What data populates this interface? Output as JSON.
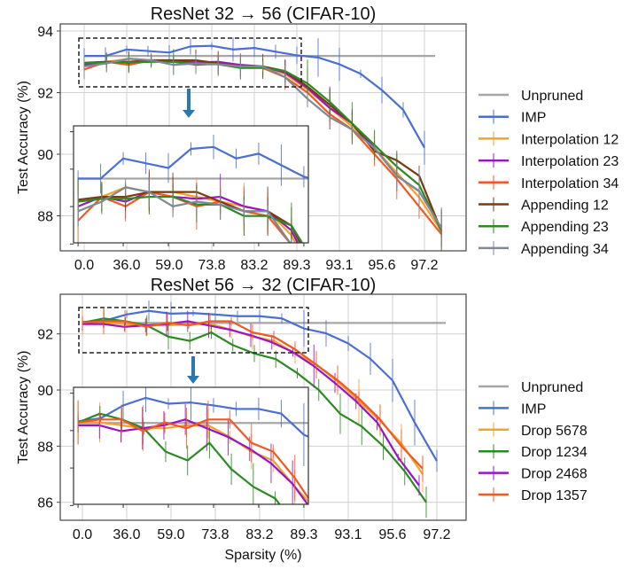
{
  "chart_data": [
    {
      "type": "line",
      "title": "ResNet 32 → 56 (CIFAR-10)",
      "xlabel": "",
      "ylabel": "Test Accuracy (%)",
      "xtick_labels": [
        "0.0",
        "36.0",
        "59.0",
        "73.8",
        "83.2",
        "89.3",
        "93.1",
        "95.6",
        "97.2"
      ],
      "yticks": [
        88,
        90,
        92,
        94
      ],
      "ylim": [
        87.1,
        94.2
      ],
      "grid": true,
      "legend_position": "right",
      "inset": {
        "xlim": [
          -0.2,
          10.2
        ],
        "ylim": [
          92.52,
          93.74
        ]
      },
      "series": [
        {
          "name": "Unpruned",
          "color": "#a6a6a6",
          "errorbars": false,
          "x": [
            0,
            16.5
          ],
          "values": [
            93.19,
            93.19
          ]
        },
        {
          "name": "IMP",
          "color": "#4a6fd0",
          "errorbars": true,
          "x": [
            0,
            1,
            2,
            3,
            4,
            5,
            6,
            7,
            8,
            9,
            10,
            11,
            12,
            13,
            14,
            15,
            16
          ],
          "values": [
            93.19,
            93.19,
            93.4,
            93.35,
            93.3,
            93.5,
            93.52,
            93.4,
            93.45,
            93.33,
            93.21,
            93.14,
            92.92,
            92.61,
            92.08,
            91.44,
            90.21
          ]
        },
        {
          "name": "Interpolation 12",
          "color": "#f5a22a",
          "errorbars": true,
          "x": [
            0,
            1.05,
            2.1,
            3.15,
            4.2,
            5.25,
            6.3,
            7.35,
            8.4,
            9.45,
            10.5,
            11.55,
            12.6,
            13.65,
            14.7,
            15.75,
            16.8
          ],
          "values": [
            92.95,
            93.0,
            93.1,
            93.05,
            93.05,
            93.0,
            92.95,
            92.9,
            92.85,
            92.6,
            92.1,
            91.5,
            90.9,
            90.2,
            89.4,
            88.6,
            87.5
          ]
        },
        {
          "name": "Interpolation 23",
          "color": "#9b14c4",
          "errorbars": true,
          "x": [
            0,
            1.05,
            2.1,
            3.15,
            4.2,
            5.25,
            6.3,
            7.35,
            8.4,
            9.45,
            10.5,
            11.55,
            12.6,
            13.65,
            14.7,
            15.75,
            16.8
          ],
          "values": [
            92.9,
            93.0,
            92.95,
            93.05,
            93.0,
            92.98,
            93.0,
            92.9,
            92.85,
            92.65,
            92.15,
            91.5,
            91.0,
            90.2,
            89.3,
            88.8,
            87.6
          ]
        },
        {
          "name": "Interpolation 34",
          "color": "#f05a22",
          "errorbars": true,
          "x": [
            0,
            1.05,
            2.1,
            3.15,
            4.2,
            5.25,
            6.3,
            7.35,
            8.4,
            9.45,
            10.5,
            11.55,
            12.6,
            13.65,
            14.7,
            15.75,
            16.8
          ],
          "values": [
            92.75,
            93.0,
            92.9,
            93.05,
            93.0,
            92.9,
            92.95,
            92.85,
            92.8,
            92.5,
            92.0,
            91.3,
            90.8,
            90.0,
            89.2,
            88.3,
            87.4
          ]
        },
        {
          "name": "Appending 12",
          "color": "#7a3b12",
          "errorbars": true,
          "x": [
            0,
            1.05,
            2.1,
            3.15,
            4.2,
            5.25,
            6.3,
            7.35,
            8.4,
            9.45,
            10.5,
            11.55,
            12.6,
            13.65,
            14.7,
            15.75,
            16.8
          ],
          "values": [
            92.97,
            93.0,
            93.0,
            93.05,
            93.05,
            93.05,
            92.95,
            92.85,
            92.85,
            92.7,
            92.2,
            91.6,
            91.0,
            90.1,
            89.8,
            89.3,
            87.5
          ]
        },
        {
          "name": "Appending 23",
          "color": "#2b8a22",
          "errorbars": true,
          "x": [
            0,
            1.05,
            2.1,
            3.15,
            4.2,
            5.25,
            6.3,
            7.35,
            8.4,
            9.45,
            10.5,
            11.55,
            12.6,
            13.65,
            14.7,
            15.75,
            16.8
          ],
          "values": [
            92.95,
            92.98,
            92.98,
            93.0,
            93.0,
            92.92,
            92.92,
            92.8,
            92.8,
            92.7,
            92.3,
            91.7,
            91.0,
            90.3,
            89.6,
            89.0,
            87.5
          ]
        },
        {
          "name": "Appending 34",
          "color": "#7f8896",
          "errorbars": true,
          "x": [
            0,
            1.05,
            2.1,
            3.15,
            4.2,
            5.25,
            6.3,
            7.35,
            8.4,
            9.45,
            10.5,
            11.55,
            12.6,
            13.65,
            14.7,
            15.75,
            16.8
          ],
          "values": [
            92.85,
            92.95,
            93.1,
            93.05,
            92.9,
            92.95,
            92.92,
            92.85,
            92.85,
            92.5,
            91.8,
            91.2,
            90.8,
            90.2,
            89.3,
            88.8,
            87.6
          ]
        }
      ]
    },
    {
      "type": "line",
      "title": "ResNet 56 → 32 (CIFAR-10)",
      "xlabel": "Sparsity (%)",
      "ylabel": "Test Accuracy (%)",
      "xtick_labels": [
        "0.0",
        "36.0",
        "59.0",
        "73.8",
        "83.2",
        "89.3",
        "93.1",
        "95.6",
        "97.2"
      ],
      "yticks": [
        86,
        88,
        90,
        92
      ],
      "ylim": [
        85.4,
        93.4
      ],
      "grid": true,
      "legend_position": "right",
      "inset": {
        "xlim": [
          -0.2,
          10.2
        ],
        "ylim": [
          91.0,
          93.0
        ]
      },
      "series": [
        {
          "name": "Unpruned",
          "color": "#a6a6a6",
          "errorbars": false,
          "x": [
            0,
            16.4
          ],
          "values": [
            92.39,
            92.39
          ]
        },
        {
          "name": "IMP",
          "color": "#4a6fd0",
          "errorbars": true,
          "x": [
            0,
            1,
            2,
            3,
            4,
            5,
            6,
            7,
            8,
            9,
            10,
            11,
            12,
            13,
            14,
            15,
            16
          ],
          "values": [
            92.42,
            92.47,
            92.69,
            92.82,
            92.72,
            92.74,
            92.69,
            92.63,
            92.63,
            92.55,
            92.19,
            92.02,
            91.66,
            91.11,
            90.34,
            88.84,
            87.47
          ]
        },
        {
          "name": "Drop 5678",
          "color": "#f5a22a",
          "errorbars": true,
          "x": [
            0,
            0.96,
            1.92,
            2.88,
            3.84,
            4.8,
            5.76,
            6.72,
            7.68,
            8.64,
            9.6,
            10.56,
            11.52,
            12.48,
            13.44,
            14.4,
            15.36
          ],
          "values": [
            92.4,
            92.4,
            92.35,
            92.3,
            92.3,
            92.35,
            92.35,
            92.15,
            91.9,
            91.75,
            91.3,
            90.9,
            90.3,
            89.6,
            88.9,
            88.1,
            87.0
          ]
        },
        {
          "name": "Drop 1234",
          "color": "#2b8a22",
          "errorbars": true,
          "x": [
            0,
            0.97,
            1.94,
            2.91,
            3.88,
            4.85,
            5.82,
            6.79,
            7.76,
            8.73,
            9.7,
            10.67,
            11.64,
            12.61,
            13.58,
            14.55,
            15.52
          ],
          "values": [
            92.4,
            92.55,
            92.45,
            92.3,
            91.9,
            91.75,
            92.05,
            91.6,
            91.3,
            91.1,
            90.6,
            90.0,
            89.15,
            88.7,
            88.0,
            87.1,
            86.0
          ]
        },
        {
          "name": "Drop 2468",
          "color": "#9b14c4",
          "errorbars": true,
          "x": [
            0,
            0.95,
            1.9,
            2.85,
            3.8,
            4.75,
            5.7,
            6.65,
            7.6,
            8.55,
            9.5,
            10.45,
            11.4,
            12.35,
            13.3,
            14.25,
            15.2
          ],
          "values": [
            92.35,
            92.35,
            92.25,
            92.3,
            92.35,
            92.45,
            92.3,
            92.15,
            91.95,
            91.7,
            91.35,
            90.85,
            90.25,
            89.6,
            88.85,
            87.6,
            86.6
          ]
        },
        {
          "name": "Drop 1357",
          "color": "#f05a22",
          "errorbars": true,
          "x": [
            0,
            0.96,
            1.92,
            2.88,
            3.84,
            4.8,
            5.76,
            6.72,
            7.68,
            8.64,
            9.6,
            10.56,
            11.52,
            12.48,
            13.44,
            14.4,
            15.36
          ],
          "values": [
            92.4,
            92.45,
            92.45,
            92.25,
            92.4,
            92.3,
            92.45,
            92.45,
            92.05,
            91.9,
            91.45,
            90.9,
            90.35,
            89.7,
            88.95,
            88.0,
            87.2
          ]
        }
      ]
    }
  ],
  "arrow_color": "#2a78b0"
}
